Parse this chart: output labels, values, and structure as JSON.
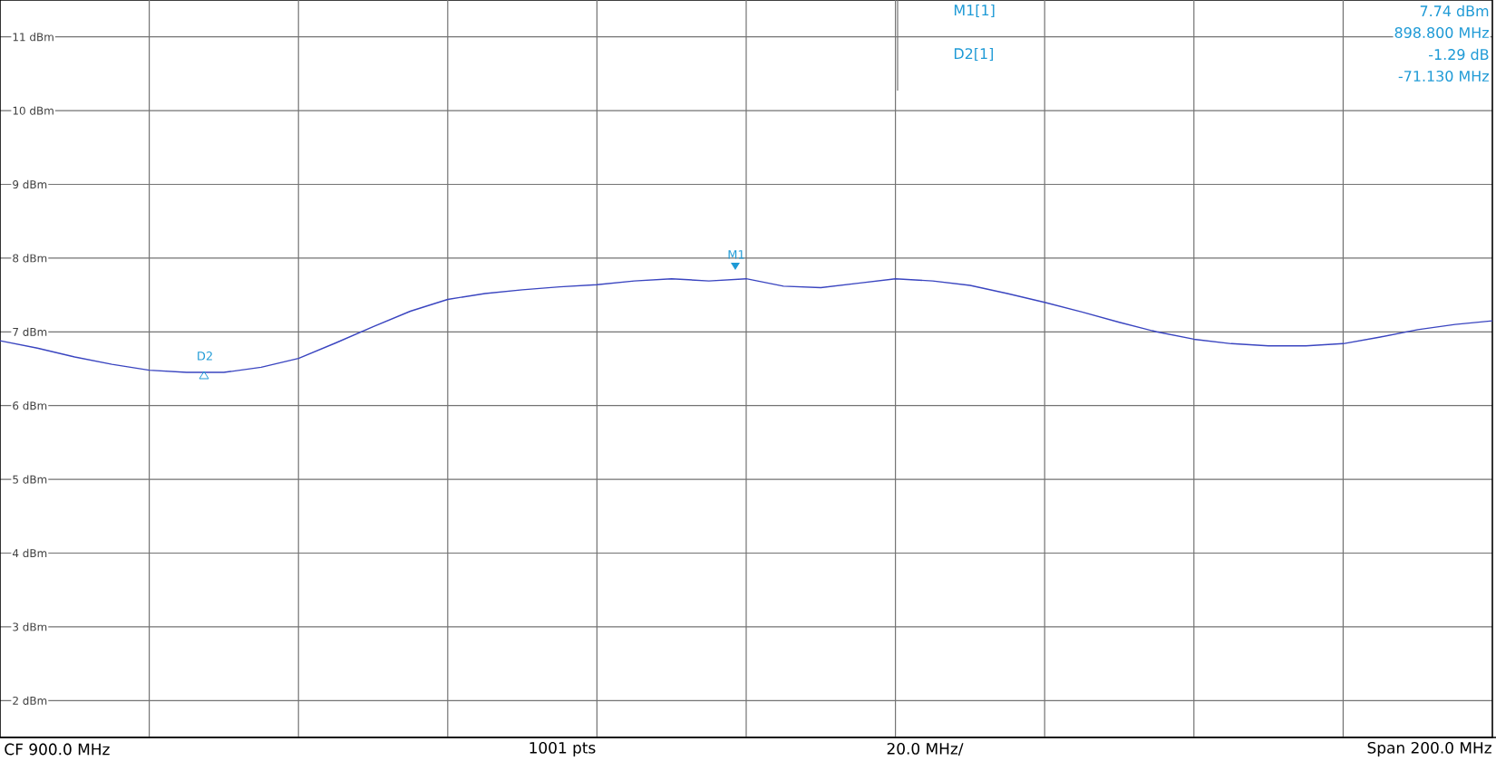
{
  "chart_data": {
    "type": "line",
    "categories": [
      null,
      null,
      null,
      null,
      null,
      null,
      null,
      null,
      null,
      null,
      null,
      null,
      null,
      null,
      null,
      null,
      null,
      null,
      null,
      null,
      null,
      null,
      null,
      null,
      null,
      null,
      null,
      null,
      null,
      null,
      null,
      null,
      null,
      null,
      null,
      null,
      null,
      null,
      null,
      null,
      null
    ],
    "series": [
      {
        "color": "#3a45c0",
        "values": [
          6.88,
          6.78,
          6.66,
          6.56,
          6.48,
          6.45,
          6.45,
          6.52,
          6.64,
          6.85,
          7.07,
          7.28,
          7.44,
          7.52,
          7.57,
          7.61,
          7.64,
          7.69,
          7.72,
          7.69,
          7.72,
          7.62,
          7.6,
          7.66,
          7.72,
          7.69,
          7.63,
          7.52,
          7.4,
          7.27,
          7.13,
          7.0,
          6.9,
          6.84,
          6.81,
          6.81,
          6.84,
          6.93,
          7.03,
          7.1,
          7.15
        ]
      }
    ],
    "ylim": [
      1.5,
      11.5
    ],
    "yticks": [
      {
        "value": 2,
        "label": "2 dBm"
      },
      {
        "value": 3,
        "label": "3 dBm"
      },
      {
        "value": 4,
        "label": "4 dBm"
      },
      {
        "value": 5,
        "label": "5 dBm"
      },
      {
        "value": 6,
        "label": "6 dBm"
      },
      {
        "value": 7,
        "label": "7 dBm"
      },
      {
        "value": 8,
        "label": "8 dBm"
      },
      {
        "value": 9,
        "label": "9 dBm"
      },
      {
        "value": 10,
        "label": "10 dBm"
      },
      {
        "value": 11,
        "label": "11 dBm"
      }
    ],
    "grid": true,
    "marker": "none",
    "line_style": "solid",
    "annotations": [
      "M1[1]",
      "7.74 dBm",
      "898.800 MHz",
      "D2[1]",
      "-1.29 dB",
      "-71.130 MHz",
      "CF 900.0 MHz",
      "1001 pts",
      "20.0 MHz/",
      "Span 200.0 MHz",
      "M1",
      "D2"
    ]
  }
}
